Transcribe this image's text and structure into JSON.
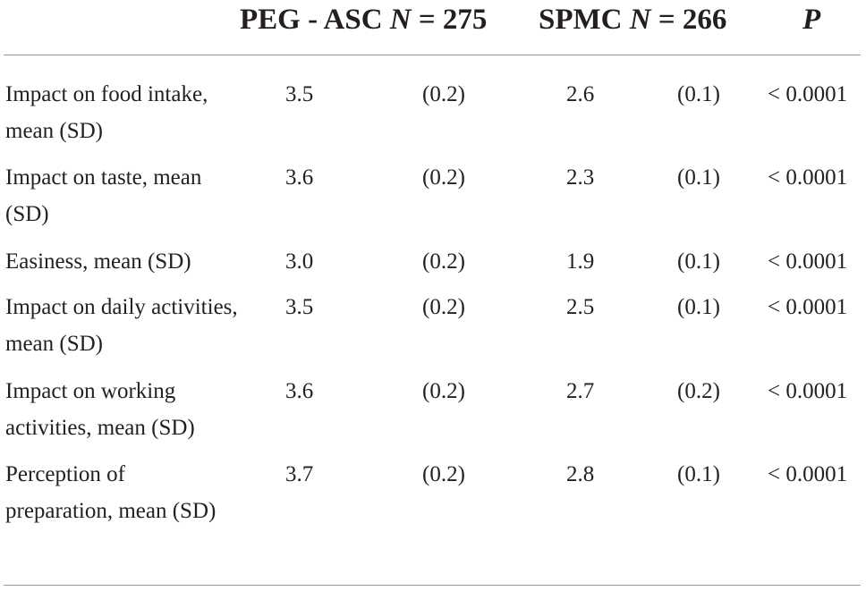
{
  "header": {
    "group1_name": "PEG - ASC",
    "group1_n_label": "N",
    "group1_n_value": "= 275",
    "group2_name": "SPMC",
    "group2_n_label": "N",
    "group2_n_value": "= 266",
    "p_label": "P"
  },
  "rows": [
    {
      "label": "Impact on food intake, mean (SD)",
      "g1_mean": "3.5",
      "g1_sd": "(0.2)",
      "g2_mean": "2.6",
      "g2_sd": "(0.1)",
      "p": "< 0.0001"
    },
    {
      "label": "Impact on taste, mean (SD)",
      "g1_mean": "3.6",
      "g1_sd": "(0.2)",
      "g2_mean": "2.3",
      "g2_sd": "(0.1)",
      "p": "< 0.0001"
    },
    {
      "label": "Easiness, mean (SD)",
      "g1_mean": "3.0",
      "g1_sd": "(0.2)",
      "g2_mean": "1.9",
      "g2_sd": "(0.1)",
      "p": "< 0.0001"
    },
    {
      "label": "Impact on daily activities, mean (SD)",
      "g1_mean": "3.5",
      "g1_sd": "(0.2)",
      "g2_mean": "2.5",
      "g2_sd": "(0.1)",
      "p": "< 0.0001"
    },
    {
      "label": "Impact on working activities, mean (SD)",
      "g1_mean": "3.6",
      "g1_sd": "(0.2)",
      "g2_mean": "2.7",
      "g2_sd": "(0.2)",
      "p": "< 0.0001"
    },
    {
      "label": "Perception of preparation, mean (SD)",
      "g1_mean": "3.7",
      "g1_sd": "(0.2)",
      "g2_mean": "2.8",
      "g2_sd": "(0.1)",
      "p": "< 0.0001"
    }
  ]
}
